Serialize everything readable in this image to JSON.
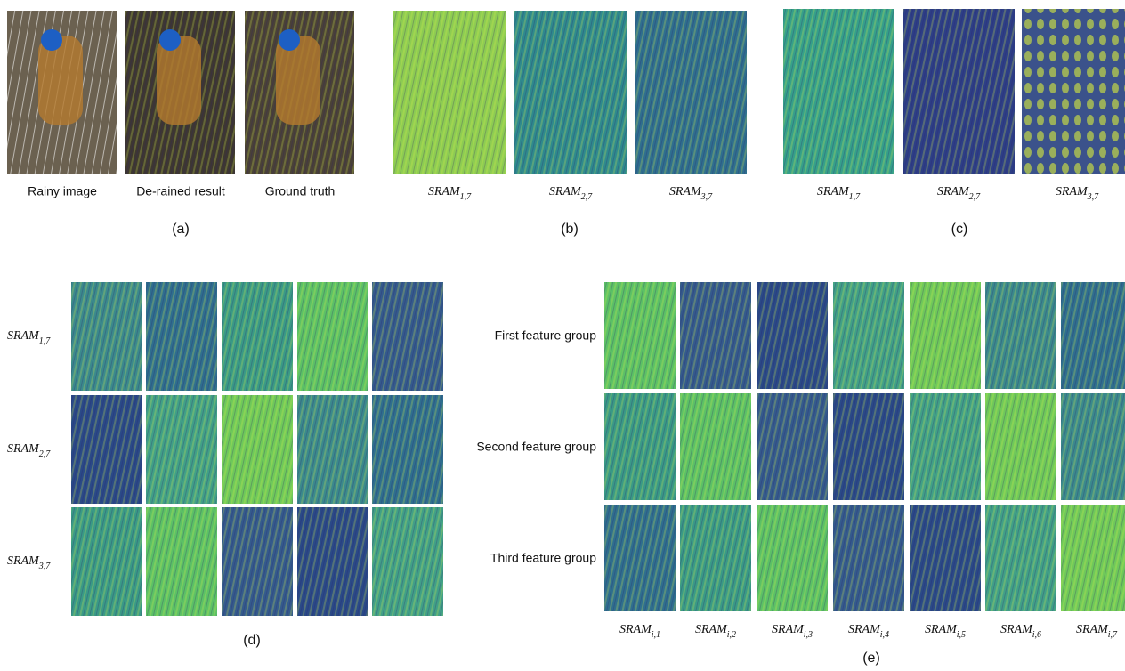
{
  "panel_a": {
    "captions": [
      "Rainy image",
      "De-rained result",
      "Ground truth"
    ],
    "label": "(a)"
  },
  "panel_b": {
    "captions": [
      {
        "main": "SRAM",
        "sub": "1,7"
      },
      {
        "main": "SRAM",
        "sub": "2,7"
      },
      {
        "main": "SRAM",
        "sub": "3,7"
      }
    ],
    "label": "(b)"
  },
  "panel_c": {
    "captions": [
      {
        "main": "SRAM",
        "sub": "1,7"
      },
      {
        "main": "SRAM",
        "sub": "2,7"
      },
      {
        "main": "SRAM",
        "sub": "3,7"
      }
    ],
    "label": "(c)"
  },
  "panel_d": {
    "rows": [
      {
        "main": "SRAM",
        "sub": "1,7"
      },
      {
        "main": "SRAM",
        "sub": "2,7"
      },
      {
        "main": "SRAM",
        "sub": "3,7"
      }
    ],
    "label": "(d)"
  },
  "panel_e": {
    "rows": [
      "First feature group",
      "Second feature group",
      "Third feature group"
    ],
    "columns": [
      {
        "main": "SRAM",
        "sub": "i,1"
      },
      {
        "main": "SRAM",
        "sub": "i,2"
      },
      {
        "main": "SRAM",
        "sub": "i,3"
      },
      {
        "main": "SRAM",
        "sub": "i,4"
      },
      {
        "main": "SRAM",
        "sub": "i,5"
      },
      {
        "main": "SRAM",
        "sub": "i,6"
      },
      {
        "main": "SRAM",
        "sub": "i,7"
      }
    ],
    "label": "(e)"
  }
}
